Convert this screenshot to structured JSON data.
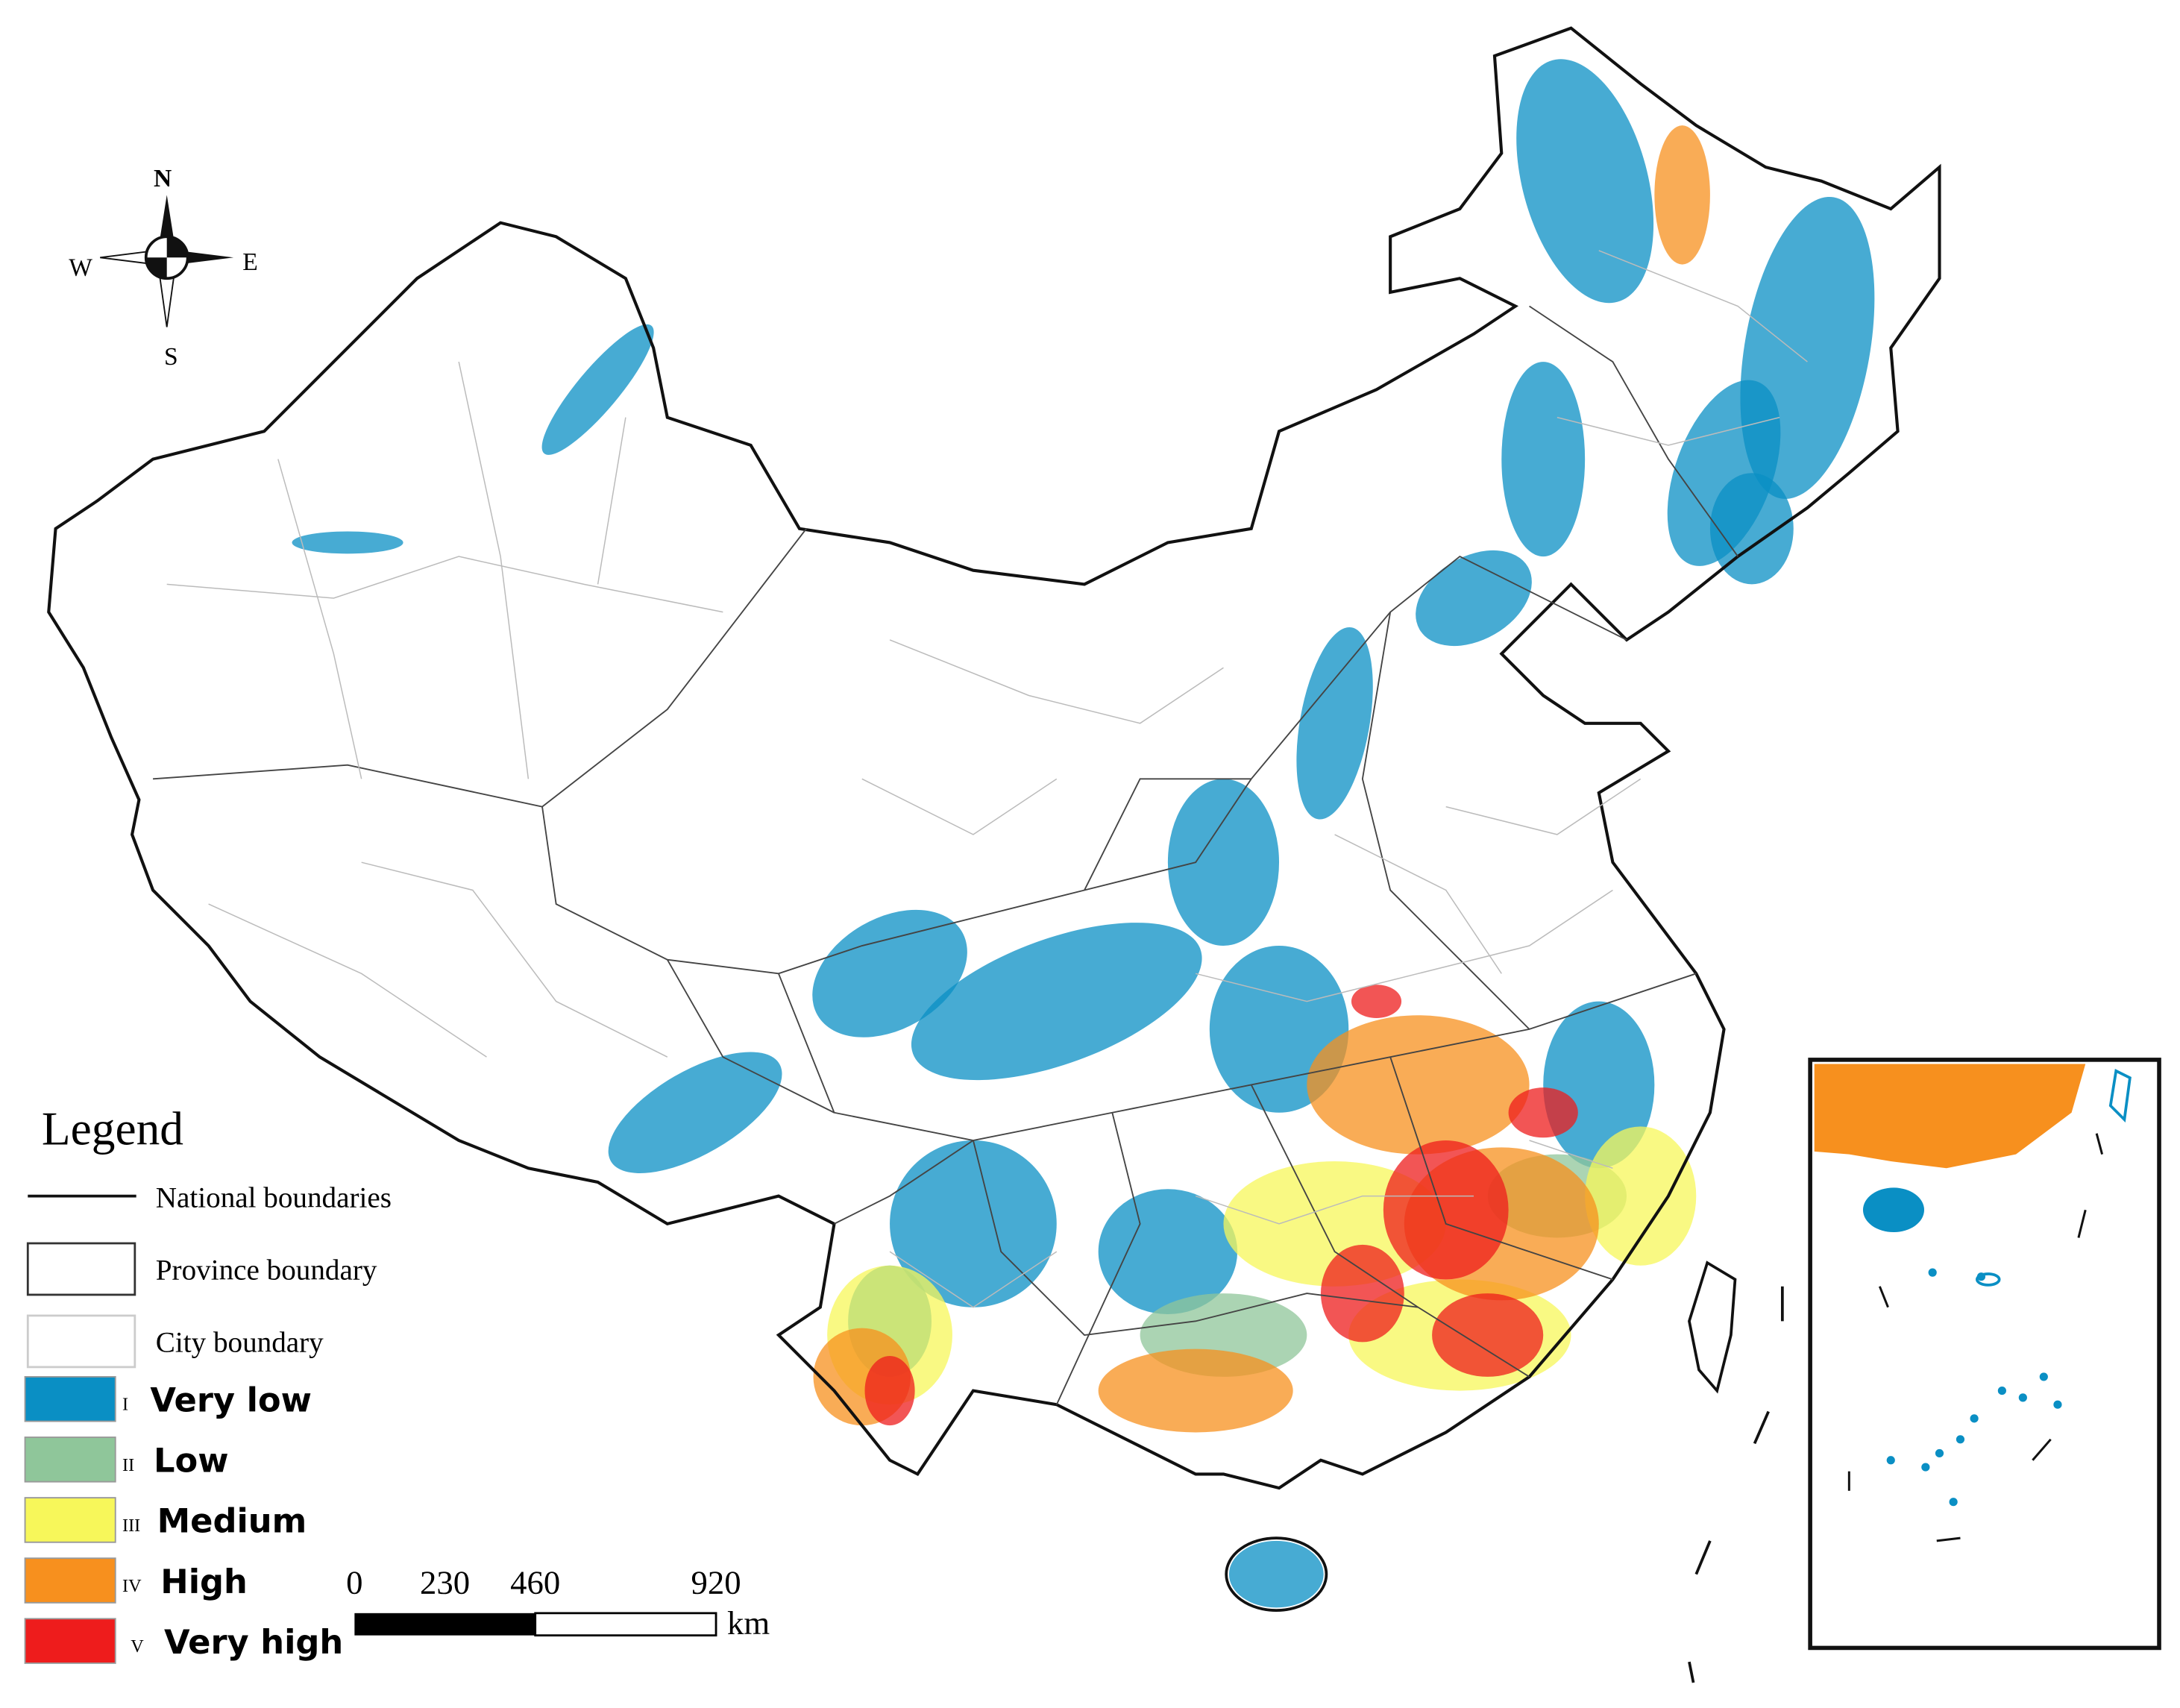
{
  "compass": {
    "north": "N",
    "south": "S",
    "west": "W",
    "east": "E"
  },
  "legend": {
    "title": "Legend",
    "boundaries": [
      "National boundaries",
      "Province boundary",
      "City boundary"
    ],
    "classes": [
      {
        "numeral": "I",
        "label": "Very low",
        "color": "#0a8fc4"
      },
      {
        "numeral": "II",
        "label": "Low",
        "color": "#8fc69a"
      },
      {
        "numeral": "III",
        "label": "Medium",
        "color": "#f7f75a"
      },
      {
        "numeral": "IV",
        "label": "High",
        "color": "#f7901e"
      },
      {
        "numeral": "V",
        "label": "Very high",
        "color": "#ee1c1c"
      }
    ]
  },
  "scale_bar": {
    "ticks": [
      0,
      230,
      460,
      920
    ],
    "unit": "km"
  }
}
